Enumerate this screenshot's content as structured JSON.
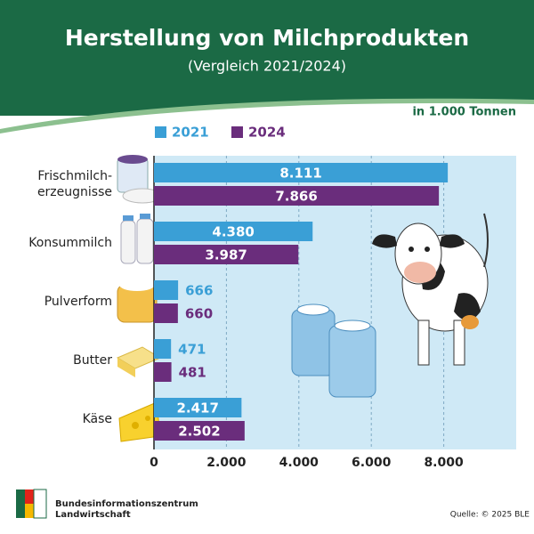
{
  "chart_data": {
    "type": "hbar",
    "title": "Herstellung von Milchprodukten",
    "subtitle": "(Vergleich 2021/2024)",
    "unit_note": "in 1.000 Tonnen",
    "categories": [
      "Frischmilch-\nerzeugnisse",
      "Konsummilch",
      "Pulverform",
      "Butter",
      "Käse"
    ],
    "series": [
      {
        "name": "2021",
        "color": "#3a9fd6",
        "values": [
          8111,
          4380,
          666,
          471,
          2417
        ],
        "value_labels": [
          "8.111",
          "4.380",
          "666",
          "471",
          "2.417"
        ]
      },
      {
        "name": "2024",
        "color": "#6a2d7c",
        "values": [
          7866,
          3987,
          660,
          481,
          2502
        ],
        "value_labels": [
          "7.866",
          "3.987",
          "660",
          "481",
          "2.502"
        ]
      }
    ],
    "xlim": [
      0,
      10000
    ],
    "xticks": [
      0,
      {
        "value": 2000,
        "label": "2.000"
      },
      {
        "value": 4000,
        "label": "4.000"
      },
      {
        "value": 6000,
        "label": "6.000"
      },
      {
        "value": 8000,
        "label": "8.000"
      }
    ],
    "grid": true,
    "source": "Quelle: © 2025 BLE",
    "publisher": [
      "Bundesinformationszentrum",
      "Landwirtschaft"
    ]
  }
}
